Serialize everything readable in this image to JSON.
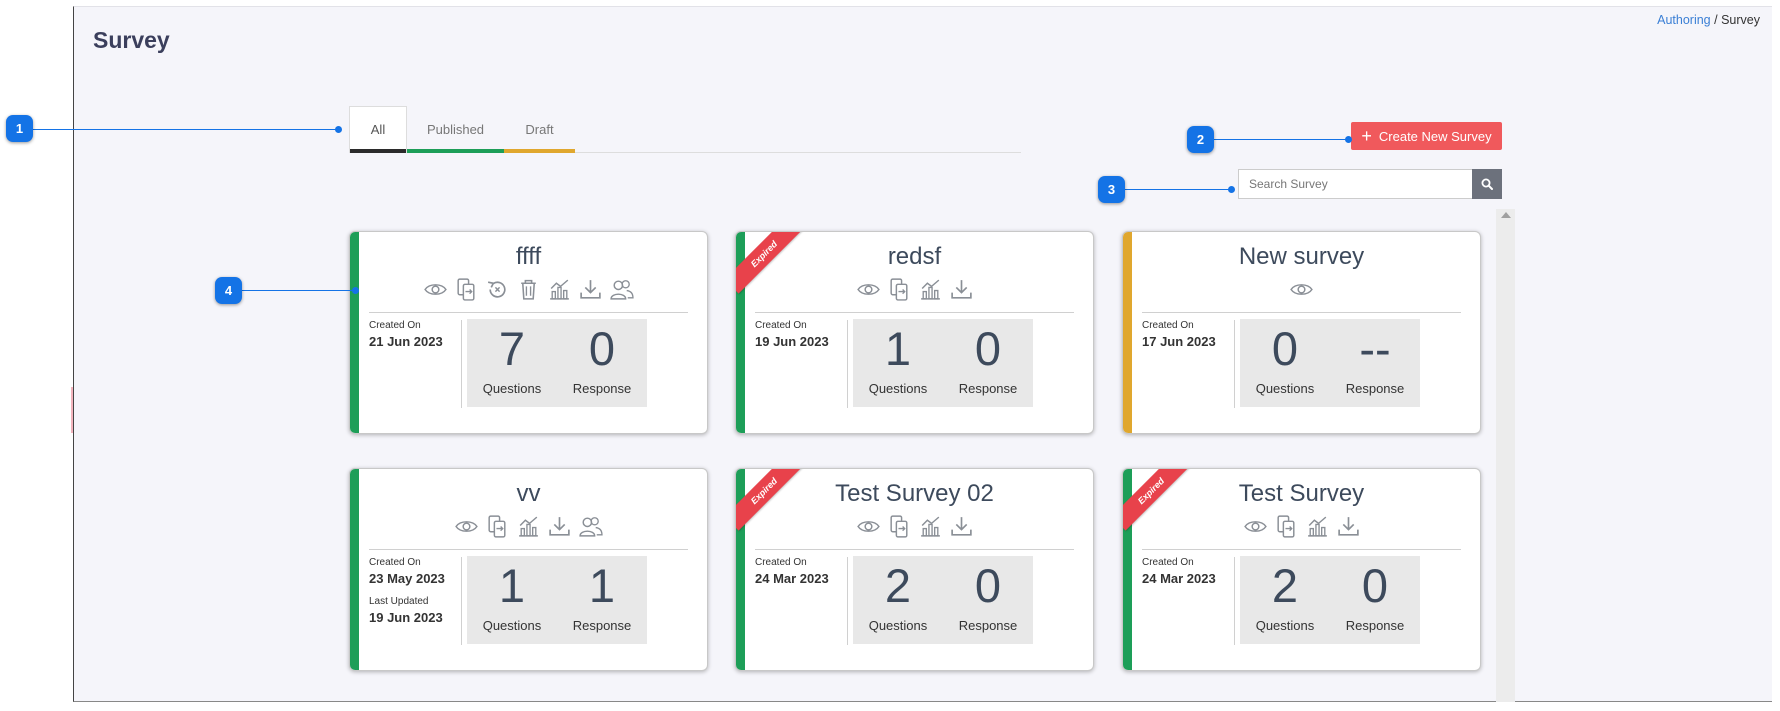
{
  "page": {
    "title": "Survey"
  },
  "breadcrumb": {
    "parent": "Authoring",
    "separator": "/",
    "current": "Survey"
  },
  "tabs": [
    {
      "label": "All",
      "active": true,
      "color": "#2b2b2b"
    },
    {
      "label": "Published",
      "active": false,
      "color": "#1d9e58"
    },
    {
      "label": "Draft",
      "active": false,
      "color": "#e0a72e"
    }
  ],
  "actions": {
    "create_label": "Create New Survey",
    "create_icon": "plus-icon"
  },
  "search": {
    "placeholder": "Search Survey",
    "icon": "search-icon"
  },
  "labels": {
    "created_on": "Created On",
    "last_updated": "Last Updated",
    "questions": "Questions",
    "response": "Response",
    "expired": "Expired"
  },
  "status_colors": {
    "published": "#1d9e58",
    "draft": "#e0a72e",
    "expired_ribbon": "#e8424b",
    "accent": "#1473e6",
    "create_button": "#f0595c"
  },
  "surveys": [
    {
      "title": "ffff",
      "status": "published",
      "expired": false,
      "icons": [
        "eye-icon",
        "share-icon",
        "revert-icon",
        "delete-icon",
        "analytics-icon",
        "download-icon",
        "users-icon"
      ],
      "created_on": "21 Jun 2023",
      "questions": "7",
      "response": "0"
    },
    {
      "title": "redsf",
      "status": "published",
      "expired": true,
      "icons": [
        "eye-icon",
        "share-icon",
        "analytics-icon",
        "download-icon"
      ],
      "created_on": "19 Jun 2023",
      "questions": "1",
      "response": "0"
    },
    {
      "title": "New survey",
      "status": "draft",
      "expired": false,
      "icons": [
        "eye-icon"
      ],
      "created_on": "17 Jun 2023",
      "questions": "0",
      "response": "--"
    },
    {
      "title": "vv",
      "status": "published",
      "expired": false,
      "icons": [
        "eye-icon",
        "share-icon",
        "analytics-icon",
        "download-icon",
        "users-icon"
      ],
      "created_on": "23 May 2023",
      "last_updated": "19 Jun 2023",
      "questions": "1",
      "response": "1"
    },
    {
      "title": "Test Survey 02",
      "status": "published",
      "expired": true,
      "icons": [
        "eye-icon",
        "share-icon",
        "analytics-icon",
        "download-icon"
      ],
      "created_on": "24 Mar 2023",
      "questions": "2",
      "response": "0"
    },
    {
      "title": "Test Survey",
      "status": "published",
      "expired": true,
      "icons": [
        "eye-icon",
        "share-icon",
        "analytics-icon",
        "download-icon"
      ],
      "created_on": "24 Mar 2023",
      "questions": "2",
      "response": "0"
    }
  ],
  "callouts": [
    "1",
    "2",
    "3",
    "4"
  ]
}
